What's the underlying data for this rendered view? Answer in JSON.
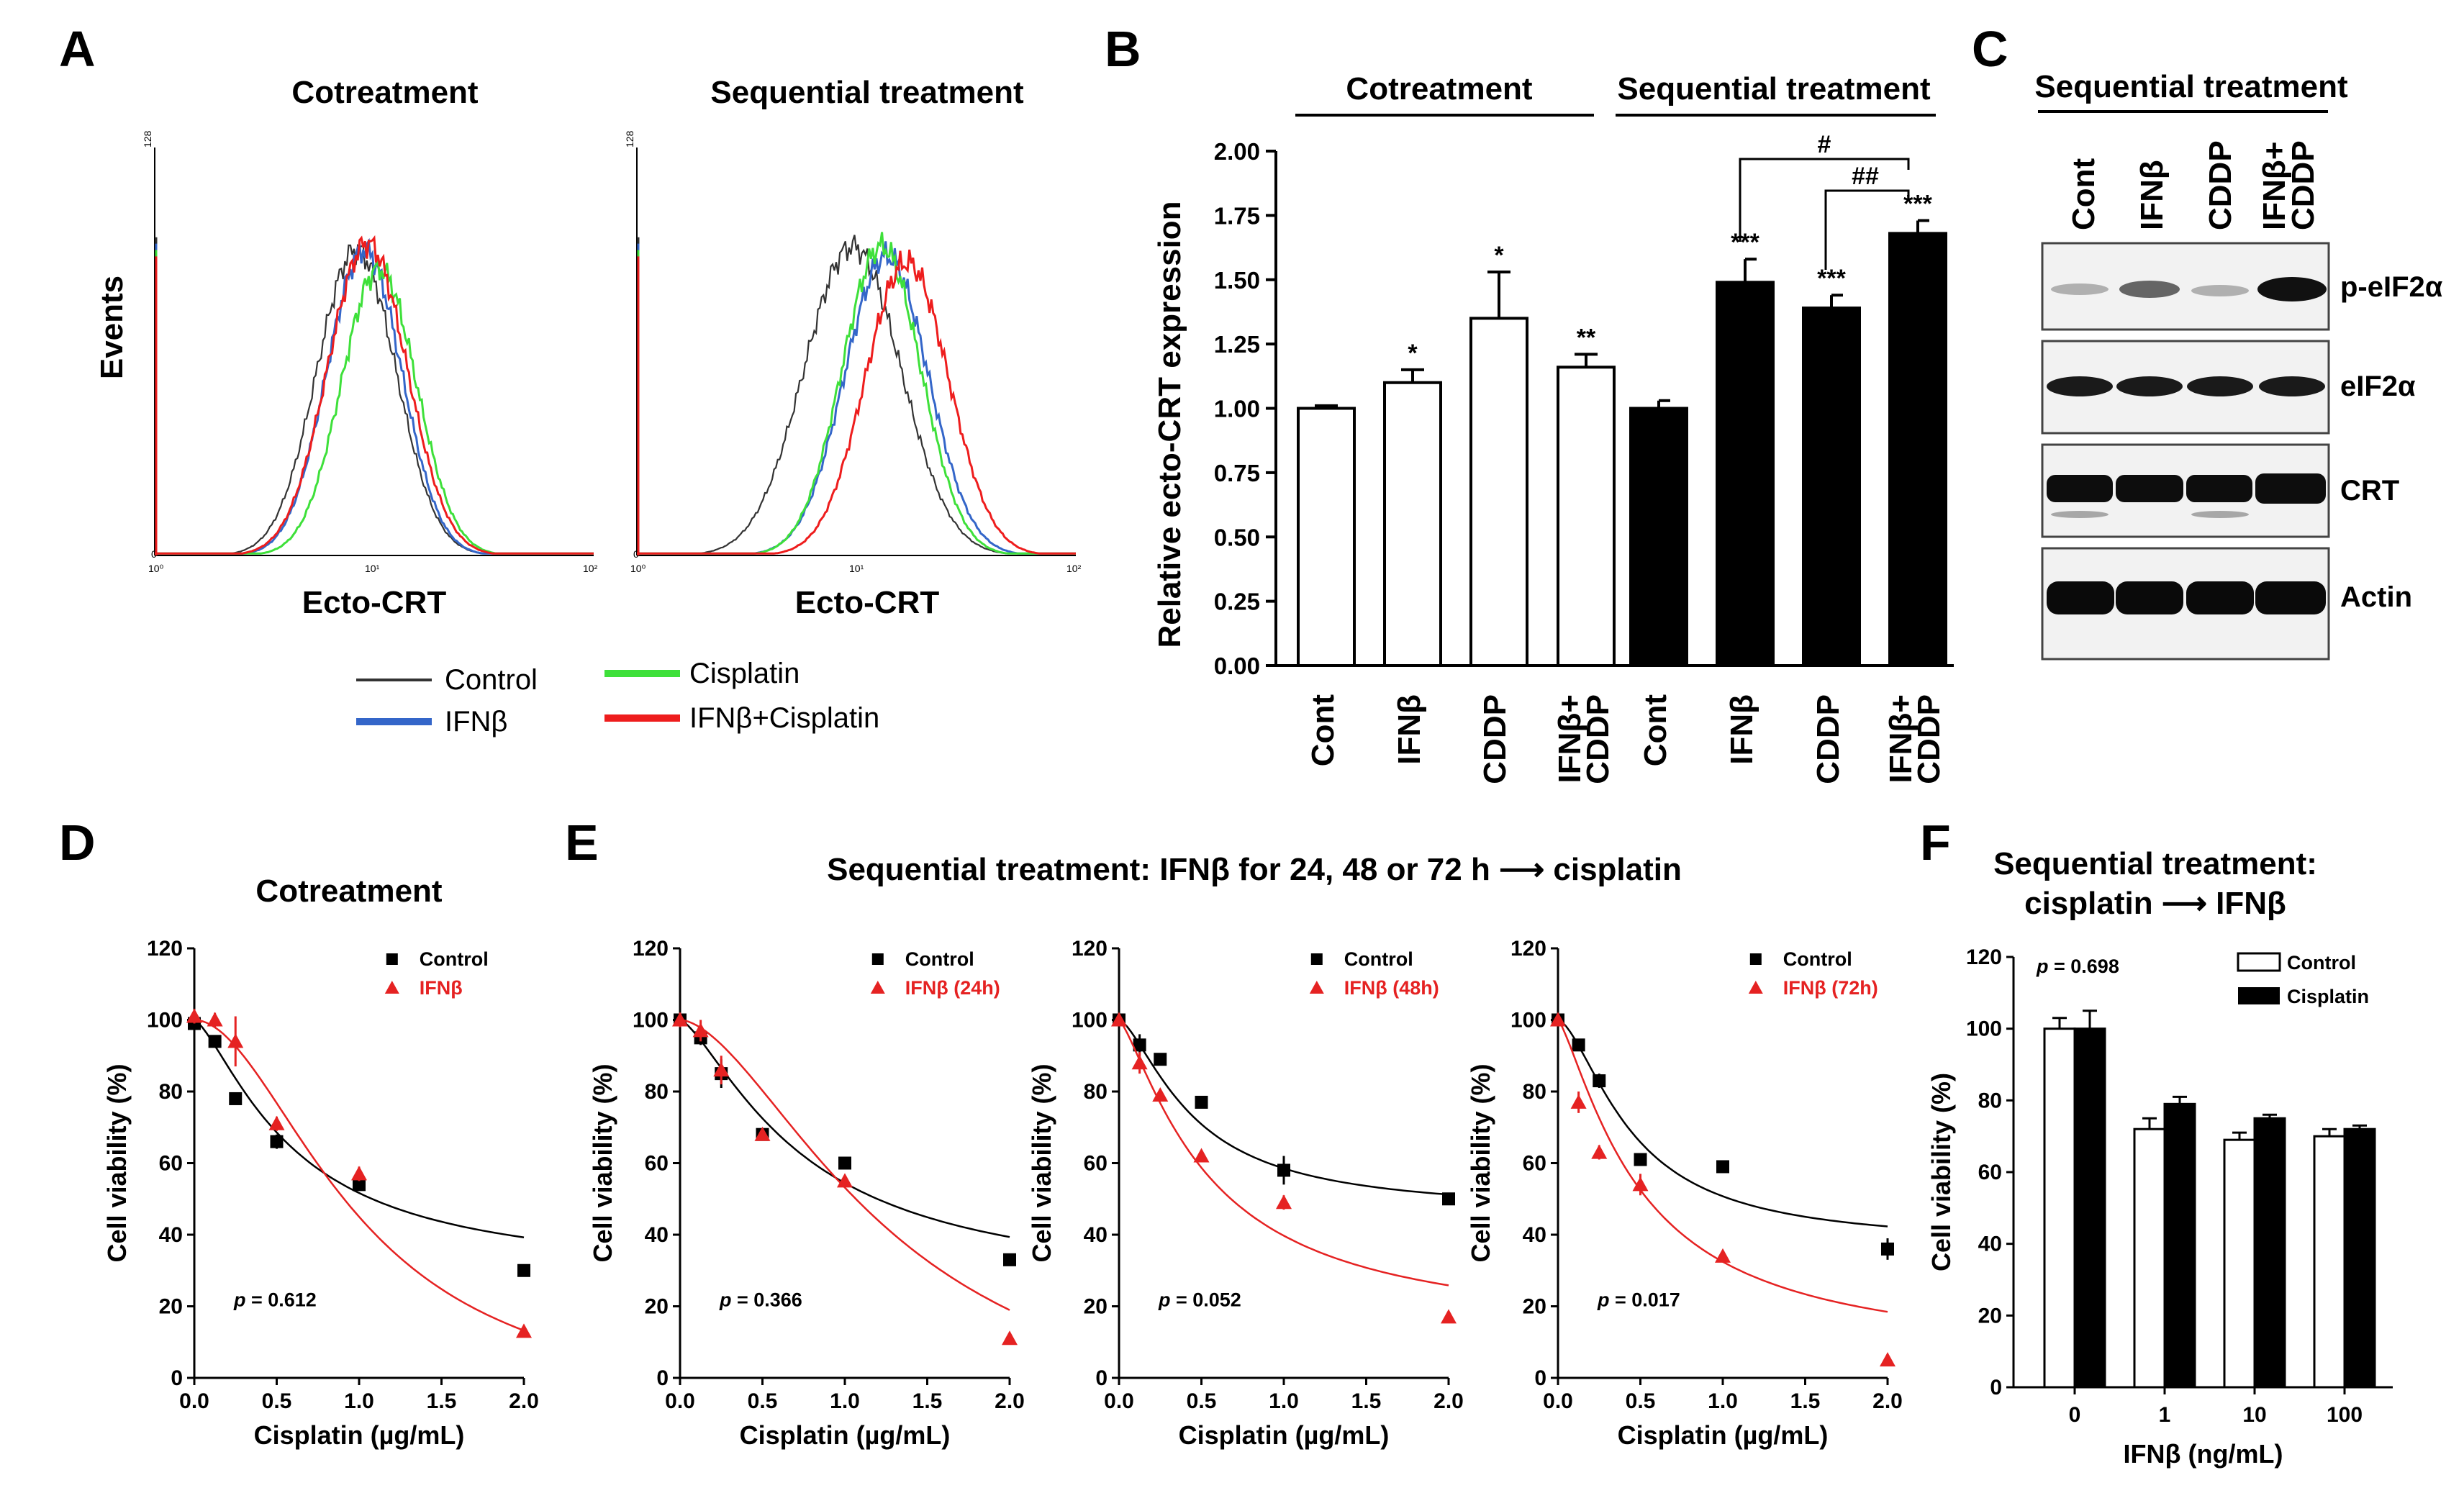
{
  "panel_labels": {
    "A": "A",
    "B": "B",
    "C": "C",
    "D": "D",
    "E": "E",
    "F": "F"
  },
  "colors": {
    "control": "#333333",
    "ifnb": "#3466c9",
    "cisplatin": "#3ee03a",
    "combo": "#ee1d1d",
    "red_fit": "#e52222",
    "black": "#000000",
    "blot_bg": "#f2f2f2"
  },
  "panelA": {
    "titles": [
      "Cotreatment",
      "Sequential treatment"
    ],
    "ylabel": "Events",
    "xlabel": "Ecto-CRT",
    "ytick_top": "128",
    "ytick_zero": "0",
    "xticks": [
      "10⁰",
      "10¹",
      "10²"
    ],
    "legend": [
      "Control",
      "IFNβ",
      "Cisplatin",
      "IFNβ+Cisplatin"
    ]
  },
  "chart_data": [
    {
      "id": "A-cotreatment",
      "type": "line",
      "title": "Cotreatment",
      "xlabel": "Ecto-CRT",
      "ylabel": "Events",
      "x_scale": "log",
      "xlim": [
        1,
        100
      ],
      "ylim": [
        0,
        128
      ],
      "series": [
        {
          "name": "Control",
          "peak_x": 8.3,
          "peak_y": 96,
          "width": 0.18
        },
        {
          "name": "IFNβ",
          "peak_x": 9.0,
          "peak_y": 96,
          "width": 0.17
        },
        {
          "name": "Cisplatin",
          "peak_x": 10.5,
          "peak_y": 90,
          "width": 0.17
        },
        {
          "name": "IFNβ+Cisplatin",
          "peak_x": 9.3,
          "peak_y": 98,
          "width": 0.18
        }
      ]
    },
    {
      "id": "A-sequential",
      "type": "line",
      "title": "Sequential treatment",
      "xlabel": "Ecto-CRT",
      "ylabel": "Events",
      "x_scale": "log",
      "xlim": [
        1,
        100
      ],
      "ylim": [
        0,
        128
      ],
      "series": [
        {
          "name": "Control",
          "peak_x": 9.6,
          "peak_y": 97,
          "width": 0.22
        },
        {
          "name": "IFNβ",
          "peak_x": 13.7,
          "peak_y": 94,
          "width": 0.19
        },
        {
          "name": "Cisplatin",
          "peak_x": 13.0,
          "peak_y": 97,
          "width": 0.18
        },
        {
          "name": "IFNβ+Cisplatin",
          "peak_x": 17.0,
          "peak_y": 92,
          "width": 0.19
        }
      ]
    },
    {
      "id": "B",
      "type": "bar",
      "ylabel": "Relative ecto-CRT expression",
      "ylim": [
        0,
        2.0
      ],
      "yticks": [
        "0.00",
        "0.25",
        "0.50",
        "0.75",
        "1.00",
        "1.25",
        "1.50",
        "1.75",
        "2.00"
      ],
      "group_labels": [
        "Cotreatment",
        "Sequential treatment"
      ],
      "categories": [
        "Cont",
        "IFNβ",
        "CDDP",
        "IFNβ+\nCDDP",
        "Cont",
        "IFNβ",
        "CDDP",
        "IFNβ+\nCDDP"
      ],
      "values": [
        1.0,
        1.1,
        1.35,
        1.16,
        1.0,
        1.49,
        1.39,
        1.68
      ],
      "errors": [
        0.01,
        0.05,
        0.18,
        0.05,
        0.03,
        0.09,
        0.05,
        0.05
      ],
      "fill": [
        "white",
        "white",
        "white",
        "white",
        "black",
        "black",
        "black",
        "black"
      ],
      "significance": [
        "",
        "*",
        "*",
        "**",
        "",
        "***",
        "***",
        "***"
      ],
      "brackets": [
        "#",
        "##"
      ]
    },
    {
      "id": "D",
      "type": "scatter",
      "title": "Cotreatment",
      "xlabel": "Cisplatin (µg/mL)",
      "ylabel": "Cell viability (%)",
      "xlim": [
        0,
        2.0
      ],
      "ylim": [
        0,
        120
      ],
      "xticks": [
        "0.0",
        "0.5",
        "1.0",
        "1.5",
        "2.0"
      ],
      "yticks": [
        "0",
        "20",
        "40",
        "60",
        "80",
        "100",
        "120"
      ],
      "legend": [
        "Control",
        "IFNβ"
      ],
      "p_label": "p",
      "p_value": "= 0.612",
      "x": [
        0,
        0.125,
        0.25,
        0.5,
        1.0,
        2.0
      ],
      "series": [
        {
          "name": "Control",
          "values": [
            99,
            94,
            78,
            66,
            54,
            30
          ],
          "errors": [
            2,
            1,
            1,
            2,
            1,
            1
          ],
          "fit": {
            "bottom": 28,
            "ec50": 0.6,
            "hill": 1.4
          }
        },
        {
          "name": "IFNβ",
          "values": [
            101,
            100,
            94,
            71,
            57,
            13
          ],
          "errors": [
            2,
            2,
            7,
            2,
            2,
            1
          ],
          "fit": {
            "bottom": -10,
            "ec50": 1.0,
            "hill": 1.9
          }
        }
      ]
    },
    {
      "id": "E1",
      "type": "scatter",
      "xlabel": "Cisplatin (µg/mL)",
      "ylabel": "Cell viability (%)",
      "xlim": [
        0,
        2.0
      ],
      "ylim": [
        0,
        120
      ],
      "xticks": [
        "0.0",
        "0.5",
        "1.0",
        "1.5",
        "2.0"
      ],
      "yticks": [
        "0",
        "20",
        "40",
        "60",
        "80",
        "100",
        "120"
      ],
      "legend": [
        "Control",
        "IFNβ (24h)"
      ],
      "p_label": "p",
      "p_value": "= 0.366",
      "x": [
        0,
        0.125,
        0.25,
        0.5,
        1.0,
        2.0
      ],
      "series": [
        {
          "name": "Control",
          "values": [
            100,
            95,
            85,
            68,
            60,
            33
          ],
          "errors": [
            2,
            2,
            4,
            1,
            1,
            1
          ],
          "fit": {
            "bottom": 24,
            "ec50": 0.75,
            "hill": 1.4
          }
        },
        {
          "name": "IFNβ (24h)",
          "values": [
            100,
            97,
            86,
            68,
            55,
            11
          ],
          "errors": [
            2,
            3,
            4,
            1,
            1,
            1
          ],
          "fit": {
            "bottom": -20,
            "ec50": 1.3,
            "hill": 1.7
          }
        }
      ]
    },
    {
      "id": "E2",
      "type": "scatter",
      "xlabel": "Cisplatin (µg/mL)",
      "ylabel": "Cell viability (%)",
      "xlim": [
        0,
        2.0
      ],
      "ylim": [
        0,
        120
      ],
      "xticks": [
        "0.0",
        "0.5",
        "1.0",
        "1.5",
        "2.0"
      ],
      "yticks": [
        "0",
        "20",
        "40",
        "60",
        "80",
        "100",
        "120"
      ],
      "legend": [
        "Control",
        "IFNβ (48h)"
      ],
      "p_label": "p",
      "p_value": "= 0.052",
      "x": [
        0,
        0.125,
        0.25,
        0.5,
        1.0,
        2.0
      ],
      "series": [
        {
          "name": "Control",
          "values": [
            100,
            93,
            89,
            77,
            58,
            50
          ],
          "errors": [
            1,
            3,
            1,
            1,
            4,
            1
          ],
          "fit": {
            "bottom": 46,
            "ec50": 0.45,
            "hill": 1.5
          }
        },
        {
          "name": "IFNβ (48h)",
          "values": [
            100,
            88,
            79,
            62,
            49,
            17
          ],
          "errors": [
            1,
            3,
            1,
            1,
            2,
            1
          ],
          "fit": {
            "bottom": 12,
            "ec50": 0.55,
            "hill": 1.3
          }
        }
      ]
    },
    {
      "id": "E3",
      "type": "scatter",
      "xlabel": "Cisplatin (µg/mL)",
      "ylabel": "Cell viability (%)",
      "xlim": [
        0,
        2.0
      ],
      "ylim": [
        0,
        120
      ],
      "xticks": [
        "0.0",
        "0.5",
        "1.0",
        "1.5",
        "2.0"
      ],
      "yticks": [
        "0",
        "20",
        "40",
        "60",
        "80",
        "100",
        "120"
      ],
      "legend": [
        "Control",
        "IFNβ (72h)"
      ],
      "p_label": "p",
      "p_value": "= 0.017",
      "x": [
        0,
        0.125,
        0.25,
        0.5,
        1.0,
        2.0
      ],
      "series": [
        {
          "name": "Control",
          "values": [
            100,
            93,
            83,
            61,
            59,
            36
          ],
          "errors": [
            1,
            1,
            2,
            1,
            1,
            3
          ],
          "fit": {
            "bottom": 37,
            "ec50": 0.45,
            "hill": 1.6
          }
        },
        {
          "name": "IFNβ (72h)",
          "values": [
            100,
            77,
            63,
            54,
            34,
            5
          ],
          "errors": [
            1,
            3,
            2,
            3,
            1,
            1
          ],
          "fit": {
            "bottom": 5,
            "ec50": 0.5,
            "hill": 1.3
          }
        }
      ]
    },
    {
      "id": "F",
      "type": "bar",
      "title": "Sequential treatment:\ncisplatin ⟶ IFNβ",
      "xlabel": "IFNβ (ng/mL)",
      "ylabel": "Cell viability (%)",
      "ylim": [
        0,
        120
      ],
      "yticks": [
        "0",
        "20",
        "40",
        "60",
        "80",
        "100",
        "120"
      ],
      "categories": [
        "0",
        "1",
        "10",
        "100"
      ],
      "legend": [
        "Control",
        "Cisplatin"
      ],
      "p_label": "p",
      "p_value": "= 0.698",
      "series": [
        {
          "name": "Control",
          "fill": "white",
          "values": [
            100,
            72,
            69,
            70
          ],
          "errors": [
            3,
            3,
            2,
            2
          ]
        },
        {
          "name": "Cisplatin",
          "fill": "black",
          "values": [
            100,
            79,
            75,
            72
          ],
          "errors": [
            5,
            2,
            1,
            1
          ]
        }
      ]
    }
  ],
  "panelB_text": {
    "groups": [
      "Cotreatment",
      "Sequential treatment"
    ],
    "ylabel": "Relative ecto-CRT expression",
    "cat": [
      "Cont",
      "IFNβ",
      "CDDP",
      "IFNβ+",
      "CDDP",
      "Cont",
      "IFNβ",
      "CDDP",
      "IFNβ+",
      "CDDP"
    ],
    "hash1": "#",
    "hash2": "##"
  },
  "panelC": {
    "title": "Sequential treatment",
    "lanes": [
      "Cont",
      "IFNβ",
      "CDDP",
      "IFNβ+",
      "CDDP"
    ],
    "bands": [
      "p-eIF2α",
      "eIF2α",
      "CRT",
      "Actin"
    ]
  },
  "panelD_text": {
    "title": "Cotreatment"
  },
  "panelE_text": {
    "title": "Sequential treatment: IFNβ for 24, 48 or 72 h ⟶ cisplatin"
  },
  "panelF_text": {
    "title_line1": "Sequential treatment:",
    "title_line2": "cisplatin ⟶ IFNβ"
  }
}
